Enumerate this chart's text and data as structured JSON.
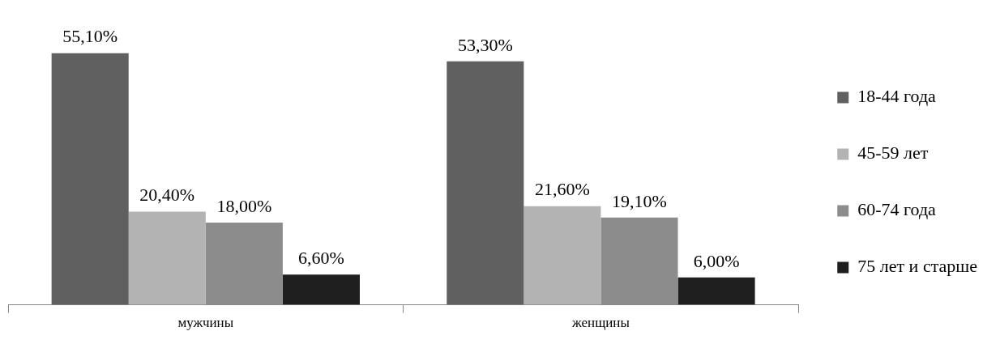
{
  "chart_data": {
    "type": "bar",
    "categories": [
      "мужчины",
      "женщины"
    ],
    "series": [
      {
        "name": "18-44 года",
        "color": "#606060",
        "values": [
          55.1,
          53.3
        ],
        "value_labels": [
          "55,10%",
          "53,30%"
        ]
      },
      {
        "name": "45-59 лет",
        "color": "#b3b3b3",
        "values": [
          20.4,
          21.6
        ],
        "value_labels": [
          "20,40%",
          "21,60%"
        ]
      },
      {
        "name": "60-74 года",
        "color": "#8c8c8c",
        "values": [
          18.0,
          19.1
        ],
        "value_labels": [
          "18,00%",
          "19,10%"
        ]
      },
      {
        "name": "75 лет и старше",
        "color": "#1f1f1f",
        "values": [
          6.6,
          6.0
        ],
        "value_labels": [
          "6,60%",
          "6,00%"
        ]
      }
    ],
    "legend": "right",
    "grid": false,
    "tick_labels": "x"
  }
}
